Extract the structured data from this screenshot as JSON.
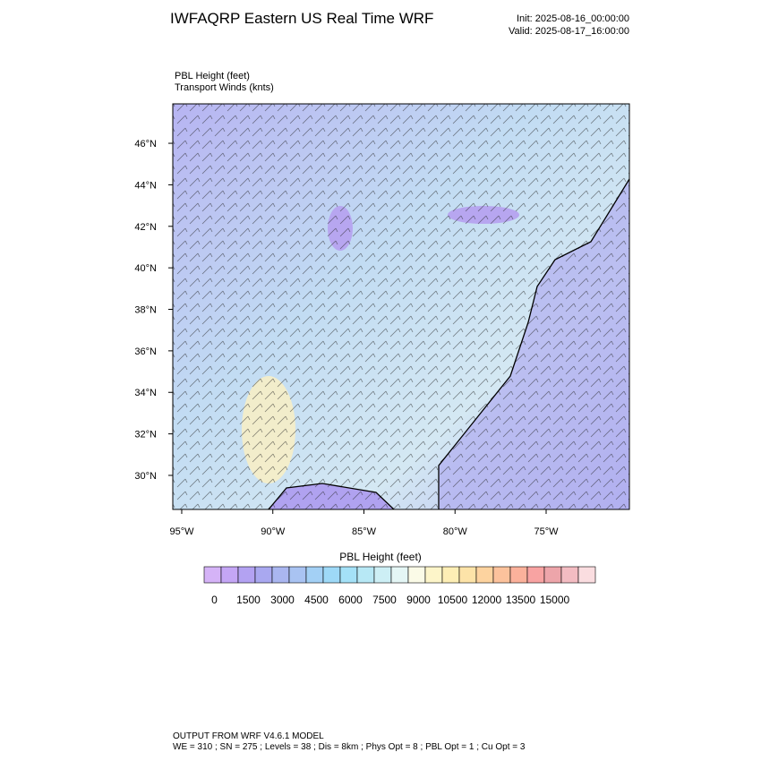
{
  "header": {
    "title": "IWFAQRP Eastern US Real Time WRF",
    "init": "Init: 2025-08-16_00:00:00",
    "valid": "Valid: 2025-08-17_16:00:00"
  },
  "field_labels": {
    "field": "PBL Height   (feet)",
    "vectors": "Transport Winds   (knts)"
  },
  "map": {
    "xlim": [
      -95.49,
      -70.43
    ],
    "ylim": [
      28.36,
      47.9
    ],
    "yticks": [
      {
        "value": 30,
        "label": "30°N"
      },
      {
        "value": 32,
        "label": "32°N"
      },
      {
        "value": 34,
        "label": "34°N"
      },
      {
        "value": 36,
        "label": "36°N"
      },
      {
        "value": 38,
        "label": "38°N"
      },
      {
        "value": 40,
        "label": "40°N"
      },
      {
        "value": 42,
        "label": "42°N"
      },
      {
        "value": 44,
        "label": "44°N"
      },
      {
        "value": 46,
        "label": "46°N"
      }
    ],
    "xticks": [
      {
        "value": -95,
        "label": "95°W"
      },
      {
        "value": -90,
        "label": "90°W"
      },
      {
        "value": -85,
        "label": "85°W"
      },
      {
        "value": -80,
        "label": "80°W"
      },
      {
        "value": -75,
        "label": "75°W"
      }
    ]
  },
  "colorbar": {
    "title": "PBL Height  (feet)",
    "min": -750,
    "step": 750,
    "levels": [
      0,
      1500,
      3000,
      4500,
      6000,
      7500,
      9000,
      10500,
      12000,
      13500,
      15000
    ],
    "colors": [
      "#d5b3f7",
      "#c4a6f5",
      "#b3a2f2",
      "#a9a8f0",
      "#aab6f0",
      "#a9c3f2",
      "#a3d0f5",
      "#9ed9f7",
      "#a4e1f7",
      "#b7e8f5",
      "#cdeff5",
      "#e4f6f5",
      "#fbfbe7",
      "#fdf5c9",
      "#fdeeb5",
      "#fde3a8",
      "#fdd39f",
      "#fcc29c",
      "#fbb19b",
      "#f8a3a2",
      "#eda5aa",
      "#f3bcc2",
      "#fadde0"
    ]
  },
  "footer": {
    "line1": "OUTPUT FROM WRF V4.6.1 MODEL",
    "line2": "WE = 310 ; SN = 275 ; Levels = 38 ; Dis = 8km ; Phys Opt = 8 ; PBL Opt = 1 ; Cu Opt = 3"
  }
}
